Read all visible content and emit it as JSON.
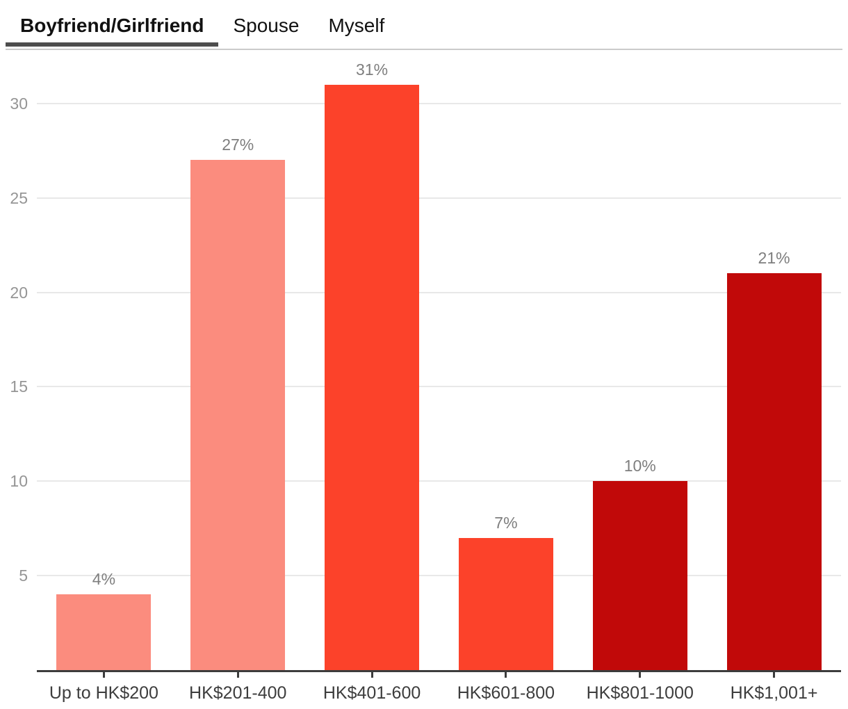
{
  "tabs": [
    {
      "label": "Boyfriend/Girlfriend",
      "active": true
    },
    {
      "label": "Spouse",
      "active": false
    },
    {
      "label": "Myself",
      "active": false
    }
  ],
  "chart_data": {
    "type": "bar",
    "categories": [
      "Up to HK$200",
      "HK$201-400",
      "HK$401-600",
      "HK$601-800",
      "HK$801-1000",
      "HK$1,001+"
    ],
    "values": [
      4,
      27,
      31,
      7,
      10,
      21
    ],
    "value_labels": [
      "4%",
      "27%",
      "31%",
      "7%",
      "10%",
      "21%"
    ],
    "bar_colors": [
      "#fb8c7e",
      "#fb8c7e",
      "#fc422a",
      "#fc422a",
      "#c10909",
      "#c10909"
    ],
    "y_ticks": [
      5,
      10,
      15,
      20,
      25,
      30
    ],
    "ylim": [
      0,
      33
    ],
    "grid": true,
    "legend": "none",
    "title": "",
    "xlabel": "",
    "ylabel": ""
  },
  "colors": {
    "bar_light": "#fb8c7e",
    "bar_medium": "#fc422a",
    "bar_dark": "#c10909",
    "active_tab_underline": "#4d4d4d",
    "tab_divider": "#cbcbcb",
    "gridline": "#e8e8e8",
    "axis_line": "#3c3c3c",
    "value_label_text": "#7e7e7e",
    "y_label_text": "#959595",
    "category_label_text": "#3d3d3d",
    "tab_text": "#111111"
  }
}
